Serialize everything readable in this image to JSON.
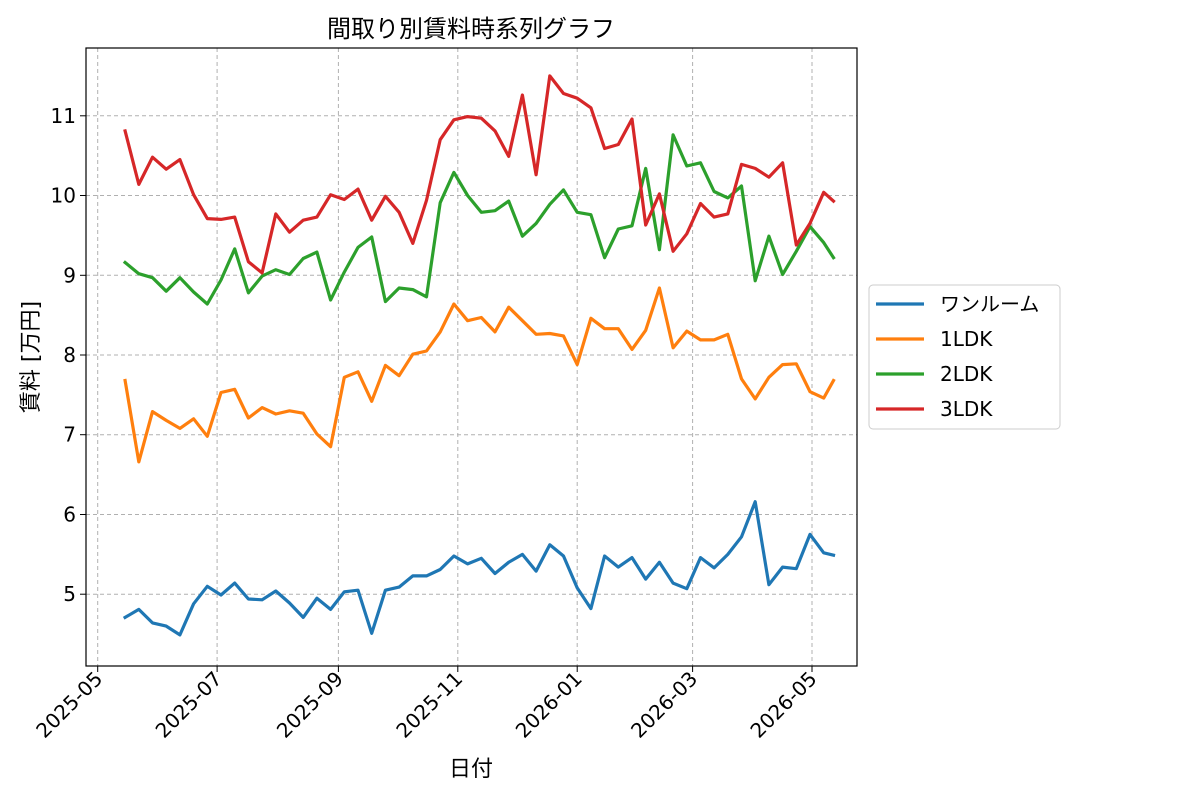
{
  "chart_data": {
    "type": "line",
    "title": "間取り別賃料時系列グラフ",
    "xlabel": "日付",
    "ylabel": "賃料 [万円]",
    "x_ticks": [
      "2025-05",
      "2025-07",
      "2025-09",
      "2025-11",
      "2026-01",
      "2026-03",
      "2026-05"
    ],
    "xlim": [
      "2025-04-25",
      "2026-05-24"
    ],
    "y_ticks": [
      5,
      6,
      7,
      8,
      9,
      10,
      11
    ],
    "ylim": [
      4.1,
      11.85
    ],
    "grid": true,
    "legend_position": "right",
    "x": [
      "2025-05-15",
      "2025-05-22",
      "2025-05-29",
      "2025-06-05",
      "2025-06-12",
      "2025-06-19",
      "2025-06-26",
      "2025-07-03",
      "2025-07-10",
      "2025-07-17",
      "2025-07-24",
      "2025-07-31",
      "2025-08-07",
      "2025-08-14",
      "2025-08-21",
      "2025-08-28",
      "2025-09-04",
      "2025-09-11",
      "2025-09-18",
      "2025-09-25",
      "2025-10-02",
      "2025-10-09",
      "2025-10-16",
      "2025-10-23",
      "2025-10-30",
      "2025-11-06",
      "2025-11-13",
      "2025-11-20",
      "2025-11-27",
      "2025-12-04",
      "2025-12-11",
      "2025-12-18",
      "2025-12-25",
      "2026-01-01",
      "2026-01-08",
      "2026-01-15",
      "2026-01-22",
      "2026-01-29",
      "2026-02-05",
      "2026-02-12",
      "2026-02-19",
      "2026-02-26",
      "2026-03-05",
      "2026-03-12",
      "2026-03-19",
      "2026-03-26",
      "2026-04-02",
      "2026-04-09",
      "2026-04-16",
      "2026-04-23",
      "2026-04-30",
      "2026-05-07",
      "2026-05-12"
    ],
    "series": [
      {
        "name": "ワンルーム",
        "color": "#1f77b4",
        "values": [
          4.71,
          4.81,
          4.64,
          4.6,
          4.49,
          4.88,
          5.1,
          4.99,
          5.14,
          4.94,
          4.93,
          5.04,
          4.89,
          4.71,
          4.95,
          4.81,
          5.03,
          5.05,
          4.51,
          5.05,
          5.09,
          5.23,
          5.23,
          5.31,
          5.48,
          5.38,
          5.45,
          5.26,
          5.4,
          5.5,
          5.29,
          5.62,
          5.48,
          5.08,
          4.82,
          5.48,
          5.34,
          5.46,
          5.19,
          5.4,
          5.14,
          5.07,
          5.46,
          5.33,
          5.5,
          5.72,
          6.16,
          5.12,
          5.34,
          5.32,
          5.75,
          5.52,
          5.49
        ]
      },
      {
        "name": "1LDK",
        "color": "#ff7f0e",
        "values": [
          7.68,
          6.66,
          7.29,
          7.18,
          7.08,
          7.2,
          6.98,
          7.53,
          7.57,
          7.21,
          7.34,
          7.26,
          7.3,
          7.27,
          7.01,
          6.85,
          7.72,
          7.79,
          7.42,
          7.87,
          7.74,
          8.01,
          8.05,
          8.29,
          8.64,
          8.43,
          8.47,
          8.29,
          8.6,
          8.43,
          8.26,
          8.27,
          8.24,
          7.88,
          8.46,
          8.33,
          8.33,
          8.07,
          8.31,
          8.84,
          8.09,
          8.3,
          8.19,
          8.19,
          8.26,
          7.7,
          7.45,
          7.72,
          7.88,
          7.89,
          7.54,
          7.46,
          7.68
        ]
      },
      {
        "name": "2LDK",
        "color": "#2ca02c",
        "values": [
          9.16,
          9.02,
          8.97,
          8.8,
          8.97,
          8.79,
          8.64,
          8.94,
          9.33,
          8.78,
          8.99,
          9.07,
          9.01,
          9.21,
          9.29,
          8.69,
          9.04,
          9.35,
          9.48,
          8.67,
          8.84,
          8.82,
          8.73,
          9.91,
          10.29,
          10.0,
          9.79,
          9.81,
          9.93,
          9.49,
          9.65,
          9.89,
          10.07,
          9.79,
          9.76,
          9.22,
          9.58,
          9.62,
          10.34,
          9.32,
          10.76,
          10.37,
          10.41,
          10.05,
          9.97,
          10.12,
          8.93,
          9.49,
          9.01,
          9.3,
          9.61,
          9.41,
          9.22
        ]
      },
      {
        "name": "3LDK",
        "color": "#d62728",
        "values": [
          10.81,
          10.14,
          10.48,
          10.33,
          10.45,
          10.01,
          9.71,
          9.7,
          9.73,
          9.17,
          9.03,
          9.77,
          9.54,
          9.69,
          9.73,
          10.01,
          9.95,
          10.08,
          9.69,
          9.99,
          9.79,
          9.4,
          9.94,
          10.7,
          10.95,
          10.99,
          10.97,
          10.81,
          10.49,
          11.26,
          10.26,
          11.5,
          11.28,
          11.22,
          11.1,
          10.59,
          10.64,
          10.96,
          9.63,
          10.02,
          9.3,
          9.52,
          9.9,
          9.73,
          9.77,
          10.39,
          10.34,
          10.23,
          10.41,
          9.38,
          9.65,
          10.04,
          9.93
        ]
      }
    ]
  }
}
